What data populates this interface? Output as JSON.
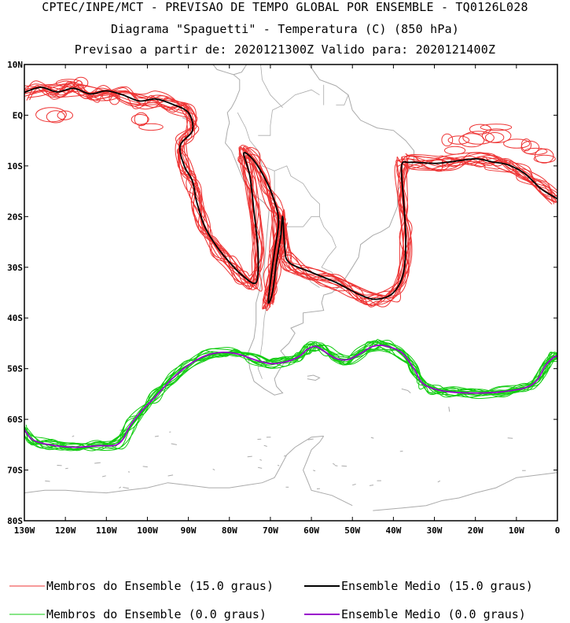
{
  "header": {
    "title_line1": "CPTEC/INPE/MCT - PREVISAO DE TEMPO GLOBAL POR ENSEMBLE - TQ0126L028",
    "title_line2": "Diagrama \"Spaguetti\" - Temperatura (C) (850 hPa)",
    "title_line3": "Previsao a partir de: 2020121300Z  Valido para: 2020121400Z"
  },
  "map": {
    "lon_range": [
      -130,
      0
    ],
    "lat_range": [
      -80,
      10
    ],
    "y_ticks": [
      "10N",
      "EQ",
      "10S",
      "20S",
      "30S",
      "40S",
      "50S",
      "60S",
      "70S",
      "80S"
    ],
    "x_ticks": [
      "130W",
      "120W",
      "110W",
      "100W",
      "90W",
      "80W",
      "70W",
      "60W",
      "50W",
      "40W",
      "30W",
      "20W",
      "10W",
      "0"
    ],
    "colors": {
      "members_15": "#ee3333",
      "mean_15": "#000000",
      "members_0": "#11cc11",
      "mean_0": "#9900cc",
      "coastline": "#aaaaaa"
    },
    "contours": {
      "isotherm_15_mean": [
        [
          -130,
          4.5
        ],
        [
          -126,
          5.5
        ],
        [
          -122,
          4.6
        ],
        [
          -118,
          5.3
        ],
        [
          -114,
          4.2
        ],
        [
          -110,
          4.8
        ],
        [
          -106,
          4
        ],
        [
          -102,
          2.8
        ],
        [
          -98,
          3.2
        ],
        [
          -94,
          2.2
        ],
        [
          -90,
          0.5
        ],
        [
          -89,
          -3
        ],
        [
          -92,
          -6
        ],
        [
          -91,
          -10
        ],
        [
          -89,
          -13
        ],
        [
          -88,
          -17
        ],
        [
          -86,
          -22
        ],
        [
          -83,
          -26
        ],
        [
          -80,
          -29
        ],
        [
          -77,
          -31.5
        ],
        [
          -73.5,
          -33
        ],
        [
          -73,
          -27
        ],
        [
          -74,
          -19
        ],
        [
          -75,
          -12
        ],
        [
          -76.5,
          -7.5
        ],
        [
          -74,
          -9
        ],
        [
          -71,
          -13
        ],
        [
          -69,
          -17
        ],
        [
          -68,
          -21
        ],
        [
          -69,
          -27
        ],
        [
          -70,
          -33
        ],
        [
          -70.5,
          -37
        ],
        [
          -69.5,
          -35
        ],
        [
          -68.5,
          -29
        ],
        [
          -67.5,
          -24
        ],
        [
          -67,
          -20
        ],
        [
          -66.5,
          -26
        ],
        [
          -65.5,
          -29
        ],
        [
          -60,
          -31
        ],
        [
          -54,
          -33
        ],
        [
          -48,
          -35.5
        ],
        [
          -44,
          -36.3
        ],
        [
          -40,
          -35
        ],
        [
          -37.5,
          -31
        ],
        [
          -37,
          -24
        ],
        [
          -37.5,
          -17
        ],
        [
          -38,
          -10
        ],
        [
          -36,
          -9.3
        ],
        [
          -30,
          -9.5
        ],
        [
          -26,
          -9.2
        ],
        [
          -20,
          -8.6
        ],
        [
          -16,
          -9.2
        ],
        [
          -12,
          -9.8
        ],
        [
          -8,
          -11.5
        ],
        [
          -4,
          -14.5
        ],
        [
          0,
          -16.5
        ]
      ],
      "isotherm_0_mean": [
        [
          -130,
          -62
        ],
        [
          -128,
          -64
        ],
        [
          -124,
          -65
        ],
        [
          -118,
          -65.5
        ],
        [
          -112,
          -65.2
        ],
        [
          -107,
          -64.8
        ],
        [
          -104,
          -61
        ],
        [
          -101,
          -58
        ],
        [
          -98,
          -55.5
        ],
        [
          -94,
          -52
        ],
        [
          -90,
          -49.3
        ],
        [
          -86,
          -47.5
        ],
        [
          -82,
          -46.8
        ],
        [
          -78,
          -47.1
        ],
        [
          -74,
          -48.2
        ],
        [
          -70,
          -49
        ],
        [
          -66,
          -48.6
        ],
        [
          -63,
          -47.6
        ],
        [
          -61,
          -46.2
        ],
        [
          -59,
          -45.6
        ],
        [
          -57,
          -46.5
        ],
        [
          -54,
          -48
        ],
        [
          -51,
          -48.2
        ],
        [
          -48,
          -47
        ],
        [
          -45,
          -45.6
        ],
        [
          -42,
          -45.5
        ],
        [
          -38,
          -46.8
        ],
        [
          -35,
          -50
        ],
        [
          -33,
          -52.8
        ],
        [
          -30,
          -54
        ],
        [
          -26,
          -54.6
        ],
        [
          -20,
          -54.8
        ],
        [
          -14,
          -54.6
        ],
        [
          -8,
          -53.8
        ],
        [
          -5,
          -52.3
        ],
        [
          -3,
          -49.5
        ],
        [
          -1,
          -47.8
        ],
        [
          0,
          -47.5
        ]
      ]
    }
  },
  "legend": {
    "red_label": "Membros do Ensemble (15.0 graus)",
    "black_label": "Ensemble Medio (15.0 graus)",
    "green_label": "Membros do Ensemble (0.0 graus)",
    "purple_label": "Ensemble Medio (0.0 graus)"
  }
}
